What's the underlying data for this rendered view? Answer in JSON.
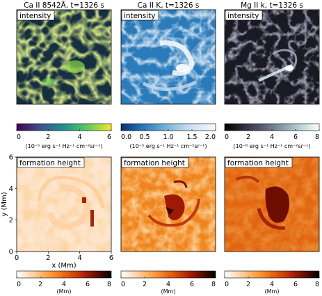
{
  "figure": {
    "columns": [
      {
        "title": "Ca II 8542Å, t=1326 s",
        "top_label": "intensity",
        "bottom_label": "formation height"
      },
      {
        "title": "Ca II K, t=1326 s",
        "top_label": "intensity",
        "bottom_label": "formation height"
      },
      {
        "title": "Mg II k, t=1326 s",
        "top_label": "intensity",
        "bottom_label": "formation height"
      }
    ]
  },
  "chart_data": [
    {
      "type": "heatmap",
      "title": "Ca II 8542Å, t=1326 s",
      "panel_label": "intensity",
      "colormap": "viridis",
      "colorbar": {
        "ticks": [
          "0",
          "2",
          "4",
          "6"
        ],
        "range": [
          0,
          6
        ],
        "unit": "(10⁻⁵ erg s⁻¹ Hz⁻¹ cm⁻²sr⁻¹)"
      }
    },
    {
      "type": "heatmap",
      "title": "Ca II K, t=1326 s",
      "panel_label": "intensity",
      "colormap": "blues (gamma)",
      "colorbar": {
        "ticks": [
          "0.0",
          "0.5",
          "1.0",
          "1.5",
          "2.0"
        ],
        "range": [
          0,
          2
        ],
        "unit": "(10⁻⁵ erg s⁻¹ Hz⁻¹ cm⁻²sr⁻¹)"
      }
    },
    {
      "type": "heatmap",
      "title": "Mg II k, t=1326 s",
      "panel_label": "intensity",
      "colormap": "bone",
      "colorbar": {
        "ticks": [
          "0",
          "2",
          "4",
          "6",
          "8"
        ],
        "range": [
          0,
          8
        ],
        "unit": "(10⁻⁶ erg s⁻¹ Hz⁻¹ cm⁻²sr⁻¹)"
      }
    },
    {
      "type": "heatmap",
      "panel_label": "formation height",
      "colormap": "gist_heat_r",
      "xlabel": "x (Mm)",
      "ylabel": "y (Mm)",
      "xlim": [
        0,
        6
      ],
      "ylim": [
        0,
        6
      ],
      "xticks": [
        "0",
        "2",
        "4",
        "6"
      ],
      "yticks": [
        "0",
        "2",
        "4",
        "6"
      ],
      "colorbar": {
        "ticks": [
          "0",
          "2",
          "4",
          "6",
          "8"
        ],
        "range": [
          0,
          8
        ],
        "unit": "(Mm)"
      }
    },
    {
      "type": "heatmap",
      "panel_label": "formation height",
      "colormap": "gist_heat_r",
      "colorbar": {
        "ticks": [
          "0",
          "2",
          "4",
          "6",
          "8"
        ],
        "range": [
          0,
          8
        ],
        "unit": "(Mm)"
      }
    },
    {
      "type": "heatmap",
      "panel_label": "formation height",
      "colormap": "gist_heat_r",
      "colorbar": {
        "ticks": [
          "0",
          "2",
          "4",
          "6",
          "8"
        ],
        "range": [
          0,
          8
        ],
        "unit": "(Mm)"
      }
    }
  ]
}
